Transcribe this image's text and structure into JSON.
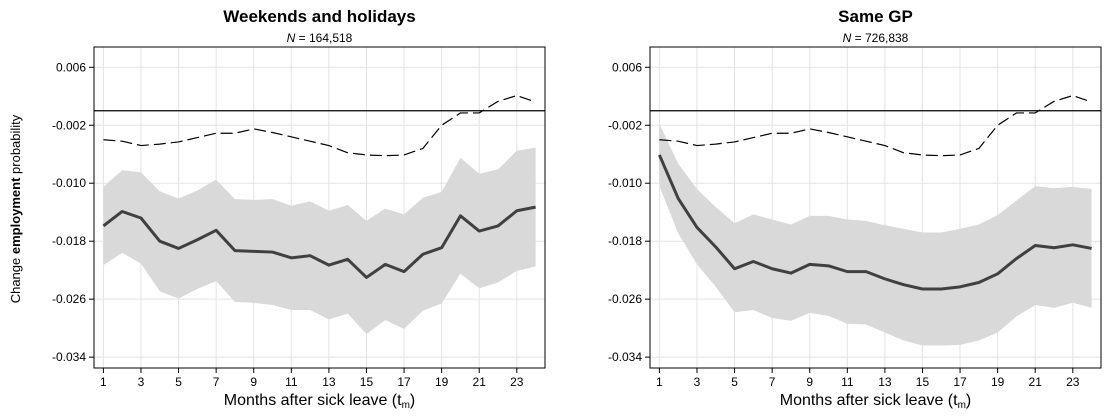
{
  "ylabel": {
    "pre": "Change ",
    "bold": "employment",
    "post": " probability"
  },
  "chart_data": [
    {
      "type": "line",
      "title": "Weekends and holidays",
      "subtitle_n": "N",
      "subtitle_value": " = 164,518",
      "xlabel_main": "Months after sick leave (t",
      "xlabel_sub": "m",
      "xlabel_close": ")",
      "ylabel": "Change employment probability",
      "xlim": [
        0.5,
        24.5
      ],
      "ylim": [
        -0.0355,
        0.0088
      ],
      "x_ticks": [
        1,
        3,
        5,
        7,
        9,
        11,
        13,
        15,
        17,
        19,
        21,
        23
      ],
      "y_ticks": [
        0.006,
        -0.002,
        -0.01,
        -0.018,
        -0.026,
        -0.034
      ],
      "y_tick_labels": [
        "0.006",
        "-0.002",
        "-0.010",
        "-0.018",
        "-0.026",
        "-0.034"
      ],
      "zero_line": 0,
      "grid": true,
      "x": [
        1,
        2,
        3,
        4,
        5,
        6,
        7,
        8,
        9,
        10,
        11,
        12,
        13,
        14,
        15,
        16,
        17,
        18,
        19,
        20,
        21,
        22,
        23,
        24
      ],
      "series": [
        {
          "role": "estimate",
          "color": "#404040",
          "values": [
            -0.0159,
            -0.0139,
            -0.0148,
            -0.018,
            -0.019,
            -0.0178,
            -0.0165,
            -0.0193,
            -0.0194,
            -0.0195,
            -0.0203,
            -0.02,
            -0.0213,
            -0.0205,
            -0.023,
            -0.0212,
            -0.0222,
            -0.0198,
            -0.0189,
            -0.0145,
            -0.0166,
            -0.0159,
            -0.0138,
            -0.0133
          ]
        },
        {
          "role": "upper_ci",
          "color": "#d9d9d9",
          "values": [
            -0.0105,
            -0.0082,
            -0.0085,
            -0.0111,
            -0.0121,
            -0.011,
            -0.0095,
            -0.0122,
            -0.0123,
            -0.0122,
            -0.0131,
            -0.0125,
            -0.0138,
            -0.013,
            -0.0152,
            -0.0135,
            -0.0143,
            -0.012,
            -0.0112,
            -0.0065,
            -0.0087,
            -0.0081,
            -0.0055,
            -0.0051
          ]
        },
        {
          "role": "lower_ci",
          "color": "#d9d9d9",
          "values": [
            -0.0213,
            -0.0196,
            -0.0211,
            -0.0249,
            -0.0259,
            -0.0246,
            -0.0235,
            -0.0264,
            -0.0265,
            -0.0268,
            -0.0275,
            -0.0275,
            -0.0288,
            -0.028,
            -0.0308,
            -0.0289,
            -0.0301,
            -0.0276,
            -0.0266,
            -0.0225,
            -0.0245,
            -0.0237,
            -0.0221,
            -0.0215
          ]
        },
        {
          "role": "dashed",
          "color": "#000000",
          "values": [
            -0.004,
            -0.0042,
            -0.0048,
            -0.0046,
            -0.0043,
            -0.0037,
            -0.0031,
            -0.0031,
            -0.0025,
            -0.003,
            -0.0036,
            -0.0042,
            -0.0048,
            -0.0058,
            -0.0061,
            -0.0062,
            -0.0061,
            -0.0052,
            -0.002,
            -0.0003,
            -0.0003,
            0.0013,
            0.0021,
            0.0012
          ]
        }
      ]
    },
    {
      "type": "line",
      "title": "Same GP",
      "subtitle_n": "N",
      "subtitle_value": " = 726,838",
      "xlabel_main": "Months after sick leave (t",
      "xlabel_sub": "m",
      "xlabel_close": ")",
      "xlim": [
        0.5,
        24.5
      ],
      "ylim": [
        -0.0355,
        0.0088
      ],
      "x_ticks": [
        1,
        3,
        5,
        7,
        9,
        11,
        13,
        15,
        17,
        19,
        21,
        23
      ],
      "y_ticks": [
        0.006,
        -0.002,
        -0.01,
        -0.018,
        -0.026,
        -0.034
      ],
      "y_tick_labels": [
        "0.006",
        "-0.002",
        "-0.010",
        "-0.018",
        "-0.026",
        "-0.034"
      ],
      "zero_line": 0,
      "grid": true,
      "x": [
        1,
        2,
        3,
        4,
        5,
        6,
        7,
        8,
        9,
        10,
        11,
        12,
        13,
        14,
        15,
        16,
        17,
        18,
        19,
        20,
        21,
        22,
        23,
        24
      ],
      "series": [
        {
          "role": "estimate",
          "color": "#404040",
          "values": [
            -0.0061,
            -0.0121,
            -0.0161,
            -0.0188,
            -0.0218,
            -0.0208,
            -0.0218,
            -0.0224,
            -0.0212,
            -0.0214,
            -0.0222,
            -0.0222,
            -0.0232,
            -0.024,
            -0.0246,
            -0.0246,
            -0.0243,
            -0.0237,
            -0.0225,
            -0.0204,
            -0.0186,
            -0.0189,
            -0.0185,
            -0.019
          ]
        },
        {
          "role": "upper_ci",
          "color": "#d9d9d9",
          "values": [
            -0.0018,
            -0.0073,
            -0.0108,
            -0.0133,
            -0.0155,
            -0.0143,
            -0.015,
            -0.0157,
            -0.0145,
            -0.0145,
            -0.015,
            -0.0152,
            -0.0158,
            -0.0163,
            -0.0168,
            -0.0168,
            -0.0163,
            -0.0157,
            -0.0144,
            -0.0124,
            -0.0104,
            -0.0107,
            -0.0105,
            -0.0108
          ]
        },
        {
          "role": "lower_ci",
          "color": "#d9d9d9",
          "values": [
            -0.0104,
            -0.0169,
            -0.0212,
            -0.0243,
            -0.0278,
            -0.0275,
            -0.0286,
            -0.029,
            -0.0279,
            -0.0283,
            -0.0294,
            -0.0295,
            -0.0306,
            -0.0317,
            -0.0324,
            -0.0324,
            -0.0323,
            -0.0317,
            -0.0306,
            -0.0284,
            -0.0268,
            -0.0272,
            -0.0265,
            -0.0272
          ]
        },
        {
          "role": "dashed",
          "color": "#000000",
          "values": [
            -0.004,
            -0.0042,
            -0.0048,
            -0.0046,
            -0.0043,
            -0.0037,
            -0.0031,
            -0.0031,
            -0.0025,
            -0.003,
            -0.0036,
            -0.0042,
            -0.0048,
            -0.0058,
            -0.0061,
            -0.0062,
            -0.0061,
            -0.0052,
            -0.002,
            -0.0003,
            -0.0003,
            0.0013,
            0.0021,
            0.0012
          ]
        }
      ]
    }
  ]
}
